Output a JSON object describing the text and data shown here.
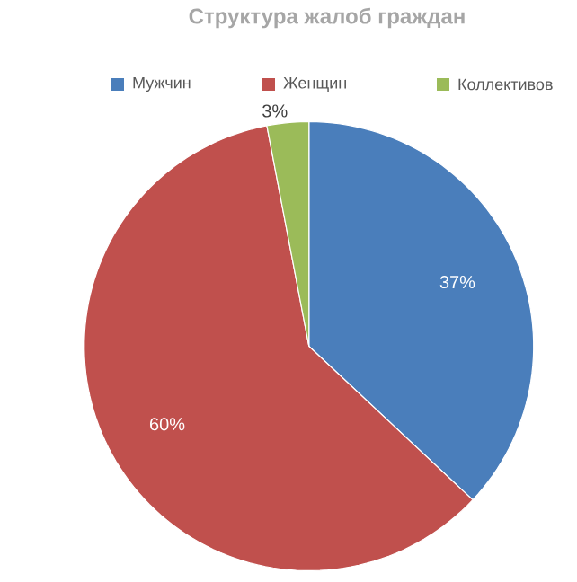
{
  "chart_data": {
    "type": "pie",
    "title": "Структура жалоб граждан",
    "categories": [
      "Мужчин",
      "Женщин",
      "Коллективов"
    ],
    "values": [
      37,
      60,
      3
    ],
    "value_labels": [
      "37%",
      "60%",
      "3%"
    ],
    "colors": [
      "#4a7ebb",
      "#c0504d",
      "#9bbb59"
    ],
    "legend": "top"
  }
}
